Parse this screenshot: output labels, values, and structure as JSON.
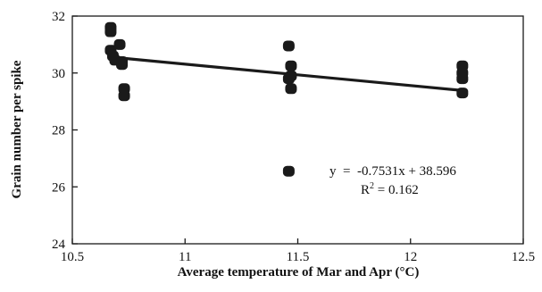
{
  "chart_data": {
    "type": "scatter",
    "title": "",
    "xlabel": "Average temperature of Mar  and Apr  (°C)",
    "ylabel": "Grain number per spike",
    "xlim": [
      10.5,
      12.5
    ],
    "ylim": [
      24,
      32
    ],
    "x_ticks": [
      10.5,
      11,
      11.5,
      12,
      12.5
    ],
    "x_tick_labels": [
      "10.5",
      "11",
      "11.5",
      "12",
      "12.5"
    ],
    "y_ticks": [
      24,
      26,
      28,
      30,
      32
    ],
    "y_tick_labels": [
      "24",
      "26",
      "28",
      "30",
      "32"
    ],
    "grid": false,
    "series": [
      {
        "x": [
          10.67,
          10.67,
          10.67,
          10.68,
          10.69,
          10.71,
          10.72,
          10.73,
          10.73,
          10.72,
          11.46,
          11.47,
          11.46,
          11.47,
          11.46,
          11.47,
          12.23,
          12.23,
          12.23,
          12.23
        ],
        "y": [
          31.6,
          31.45,
          30.8,
          30.6,
          30.45,
          31.0,
          30.3,
          29.45,
          29.2,
          30.4,
          30.95,
          30.25,
          29.8,
          29.45,
          26.55,
          29.9,
          30.25,
          30.0,
          29.8,
          29.3
        ],
        "color": "#1a1a1a"
      }
    ],
    "trendline": {
      "slope": -0.7531,
      "intercept": 38.596,
      "x_range": [
        10.7,
        12.23
      ],
      "color": "#1a1a1a"
    },
    "annotations": {
      "equation": "y  =  -0.7531x + 38.596",
      "r2_prefix": "R",
      "r2_sup": "2",
      "r2_rest": " = 0.162"
    }
  }
}
